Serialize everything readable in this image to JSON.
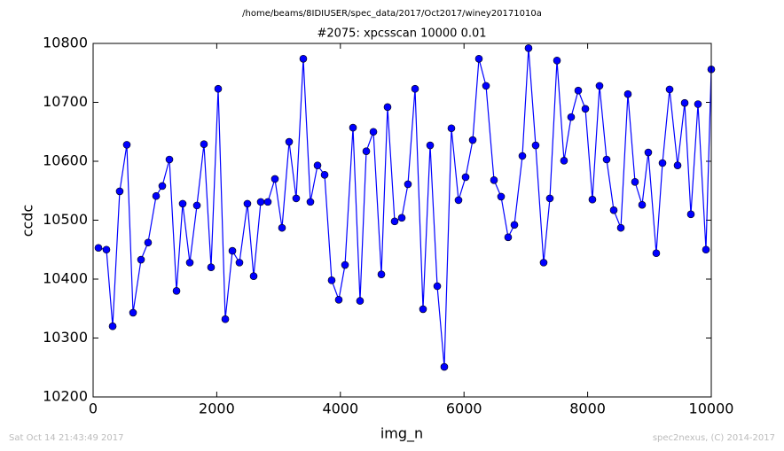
{
  "chart_data": {
    "type": "line",
    "suptitle": "/home/beams/8IDIUSER/spec_data/2017/Oct2017/winey20171010a",
    "title": "#2075: xpcsscan 10000 0.01",
    "xlabel": "img_n",
    "ylabel": "ccdc",
    "x": [
      86,
      215,
      316,
      430,
      545,
      646,
      775,
      889,
      1019,
      1119,
      1234,
      1349,
      1449,
      1564,
      1679,
      1793,
      1908,
      2023,
      2138,
      2253,
      2367,
      2496,
      2597,
      2712,
      2826,
      2941,
      3056,
      3171,
      3285,
      3400,
      3515,
      3630,
      3745,
      3859,
      3974,
      4075,
      4204,
      4318,
      4419,
      4534,
      4663,
      4763,
      4878,
      4993,
      5093,
      5208,
      5337,
      5452,
      5567,
      5681,
      5796,
      5911,
      6026,
      6141,
      6241,
      6356,
      6485,
      6600,
      6714,
      6815,
      6944,
      7044,
      7159,
      7288,
      7389,
      7504,
      7618,
      7733,
      7848,
      7963,
      8077,
      8192,
      8307,
      8422,
      8537,
      8651,
      8766,
      8881,
      8981,
      9110,
      9211,
      9326,
      9455,
      9570,
      9670,
      9785,
      9914,
      10000
    ],
    "values": [
      10453,
      10450,
      10320,
      10549,
      10628,
      10343,
      10433,
      10462,
      10541,
      10558,
      10603,
      10380,
      10528,
      10428,
      10525,
      10629,
      10420,
      10723,
      10332,
      10448,
      10428,
      10528,
      10405,
      10531,
      10531,
      10570,
      10487,
      10633,
      10537,
      10774,
      10531,
      10593,
      10577,
      10398,
      10365,
      10424,
      10657,
      10363,
      10617,
      10650,
      10408,
      10692,
      10498,
      10504,
      10561,
      10723,
      10349,
      10627,
      10388,
      10251,
      10656,
      10534,
      10573,
      10636,
      10774,
      10728,
      10568,
      10540,
      10471,
      10492,
      10609,
      10792,
      10627,
      10428,
      10537,
      10771,
      10601,
      10675,
      10720,
      10689,
      10535,
      10728,
      10603,
      10517,
      10487,
      10714,
      10565,
      10526,
      10615,
      10444,
      10597,
      10722,
      10593,
      10699,
      10510,
      10697,
      10450,
      10756
    ],
    "color": "#0000ff",
    "xlim": [
      0,
      10000
    ],
    "xticks": [
      0,
      2000,
      4000,
      6000,
      8000,
      10000
    ],
    "ylim": [
      10200,
      10800
    ],
    "yticks": [
      10200,
      10300,
      10400,
      10500,
      10600,
      10700,
      10800
    ],
    "grid": false
  },
  "footer": {
    "left": "Sat Oct 14 21:43:49 2017",
    "right": "spec2nexus, (C) 2014-2017"
  }
}
